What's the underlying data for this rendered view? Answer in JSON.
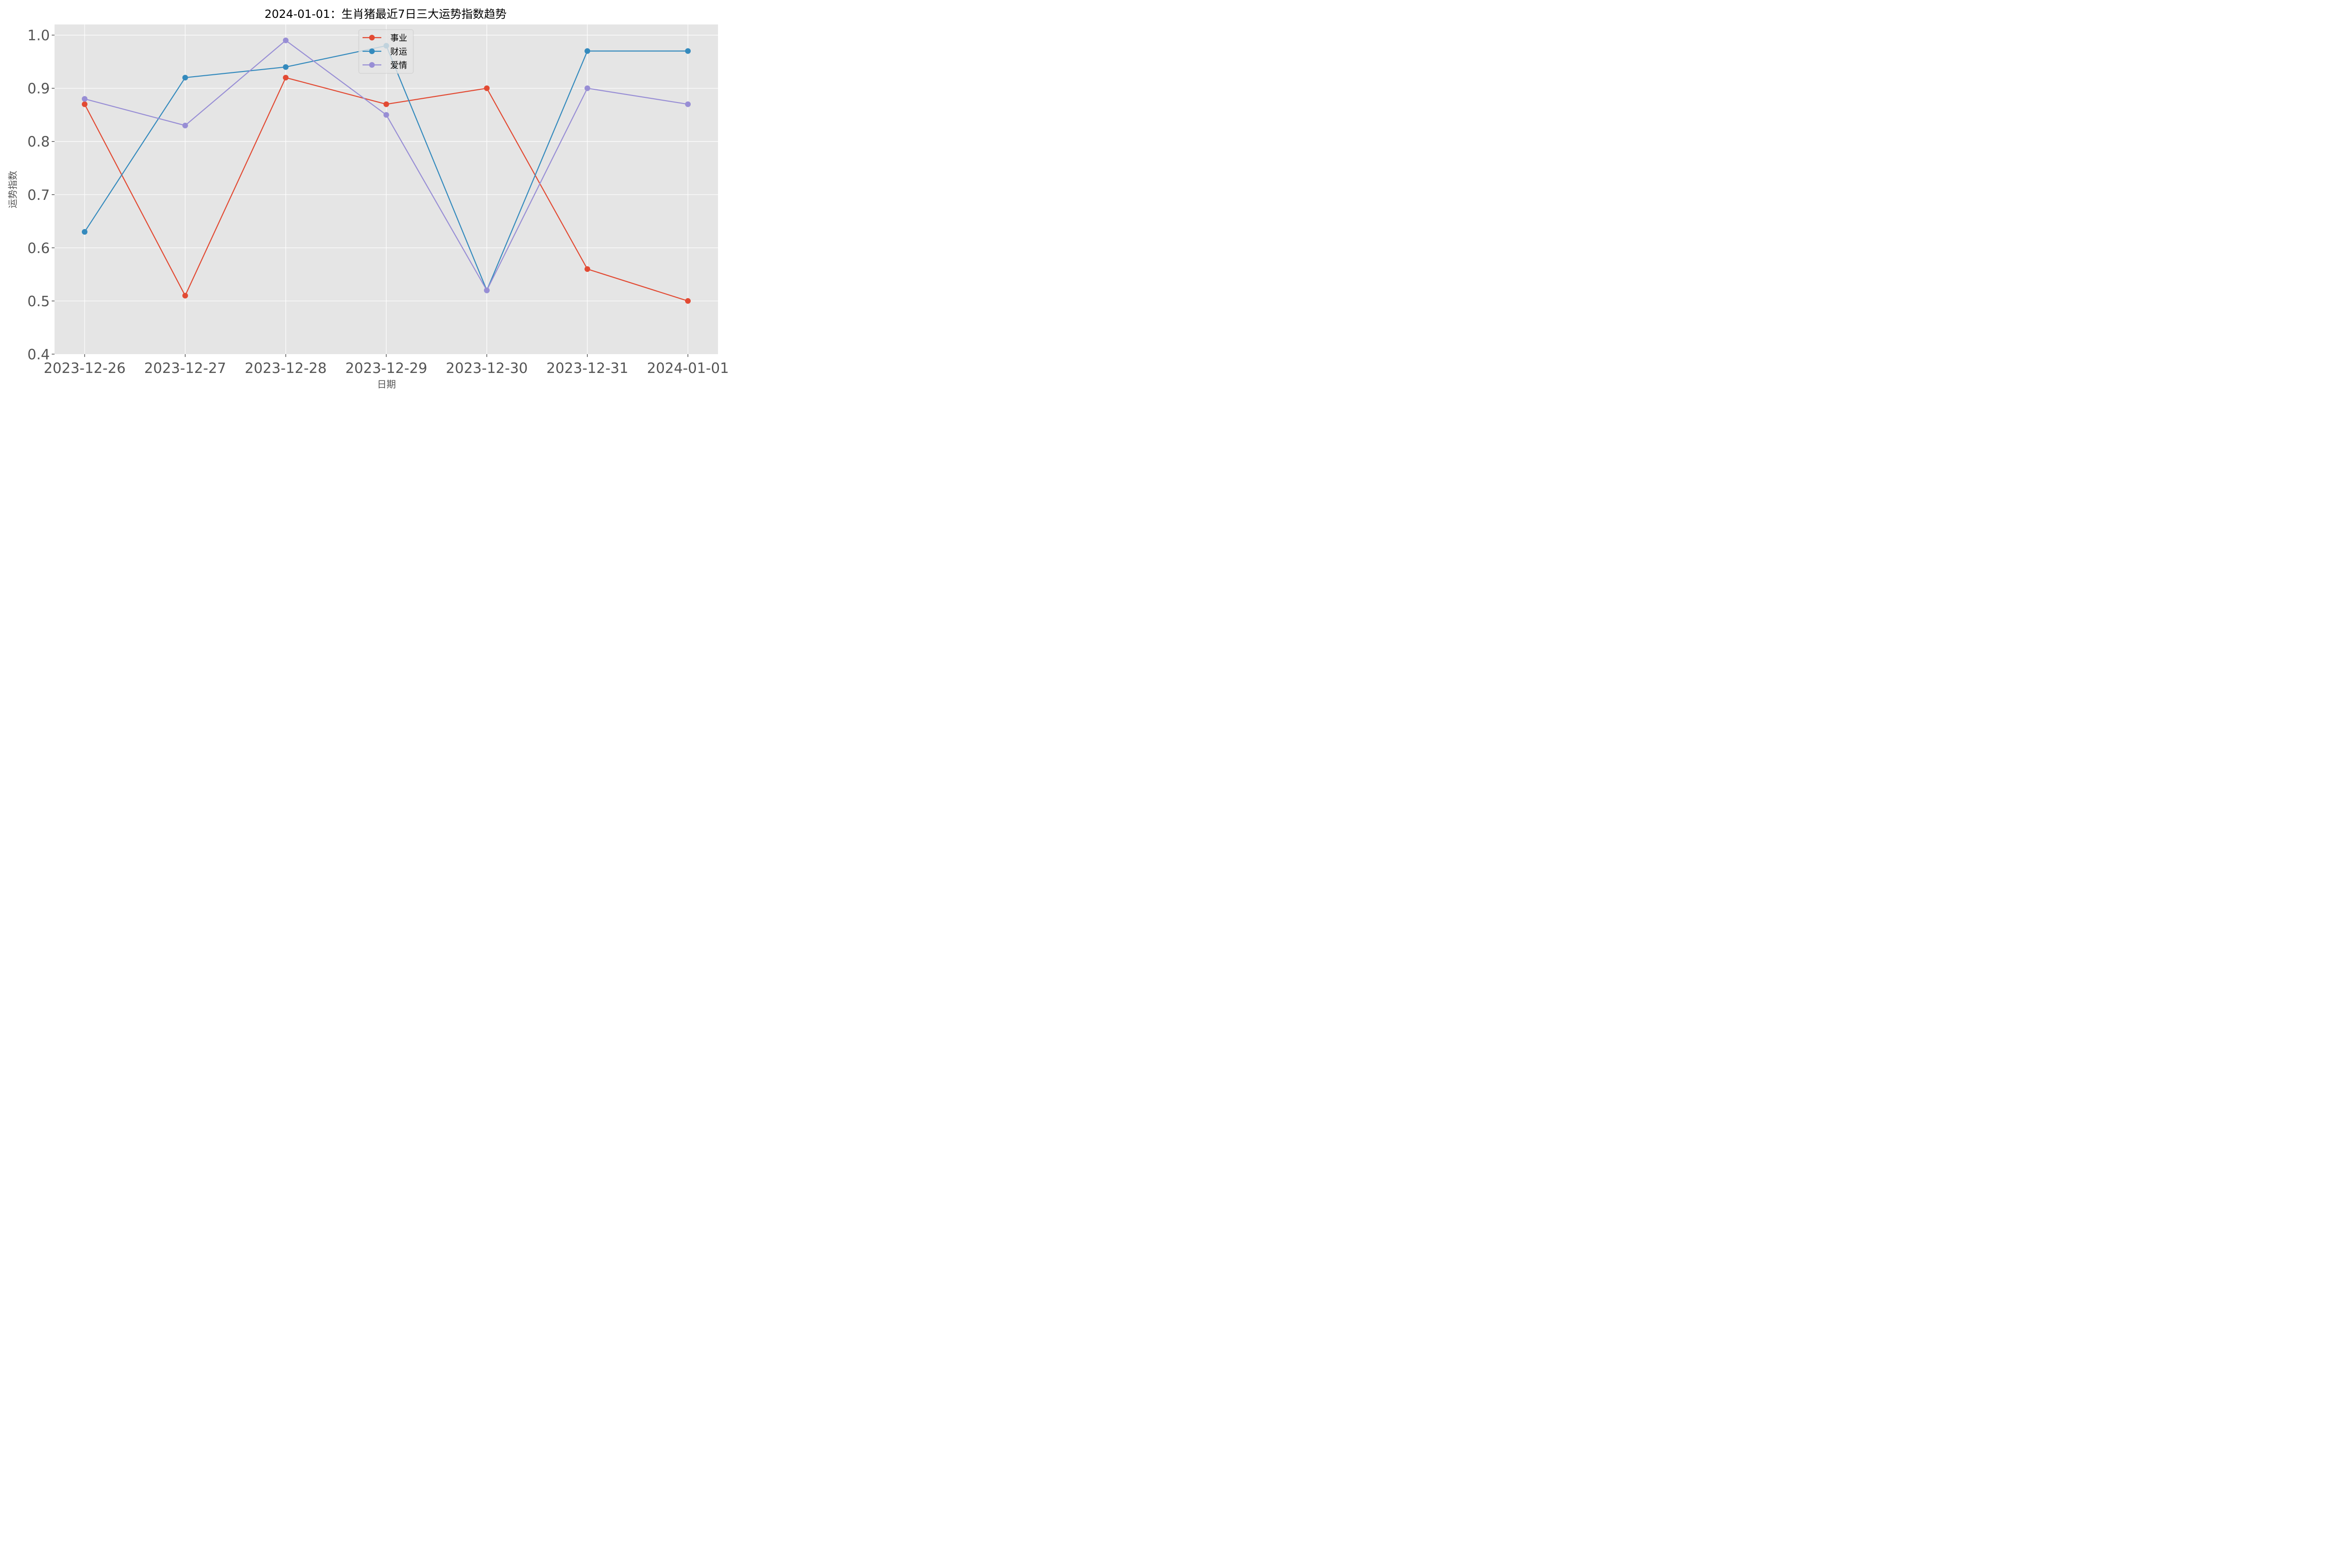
{
  "chart_data": {
    "type": "line",
    "title": "2024-01-01：生肖猪最近7日三大运势指数趋势",
    "xlabel": "日期",
    "ylabel": "运势指数",
    "categories": [
      "2023-12-26",
      "2023-12-27",
      "2023-12-28",
      "2023-12-29",
      "2023-12-30",
      "2023-12-31",
      "2024-01-01"
    ],
    "ylim": [
      0.4,
      1.02
    ],
    "yticks": [
      "0.4",
      "0.5",
      "0.6",
      "0.7",
      "0.8",
      "0.9",
      "1.0"
    ],
    "grid": true,
    "legend_position": "upper center",
    "series": [
      {
        "name": "事业",
        "color": "#E24A33",
        "values": [
          0.87,
          0.51,
          0.92,
          0.87,
          0.9,
          0.56,
          0.5
        ]
      },
      {
        "name": "财运",
        "color": "#348ABD",
        "values": [
          0.63,
          0.92,
          0.94,
          0.98,
          0.52,
          0.97,
          0.97
        ]
      },
      {
        "name": "爱情",
        "color": "#988ED5",
        "values": [
          0.88,
          0.83,
          0.99,
          0.85,
          0.52,
          0.9,
          0.87
        ]
      }
    ]
  },
  "style": {
    "plot_background": "#E5E5E5",
    "grid_color": "#FFFFFF"
  }
}
